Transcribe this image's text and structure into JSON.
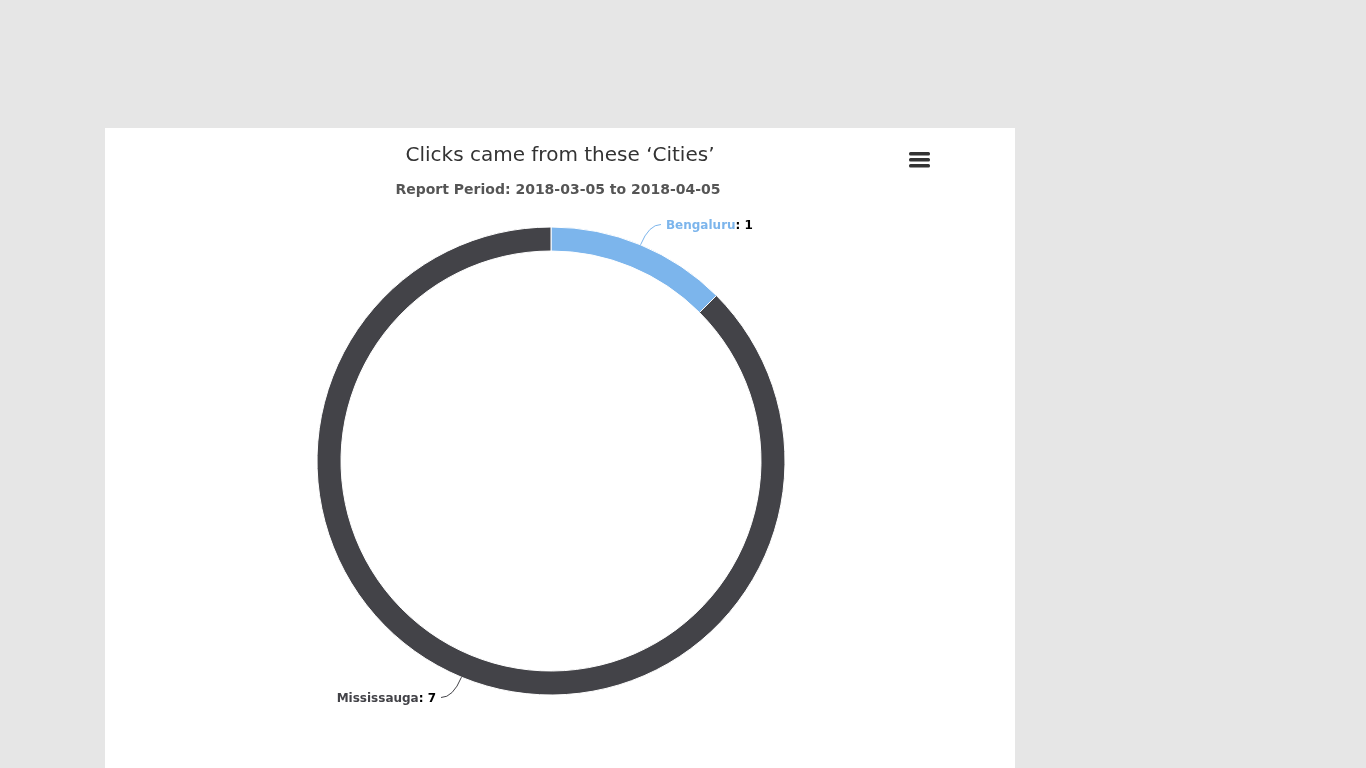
{
  "chart_data": {
    "type": "donut",
    "title": "Clicks came from these ‘Cities’",
    "subtitle": "Report Period: 2018-03-05 to 2018-04-05",
    "categories": [
      "Bengaluru",
      "Mississauga"
    ],
    "values": [
      1,
      7
    ],
    "colors": [
      "#7cb5ec",
      "#434348"
    ],
    "value_labels": [
      ": 1",
      ": 7"
    ]
  }
}
